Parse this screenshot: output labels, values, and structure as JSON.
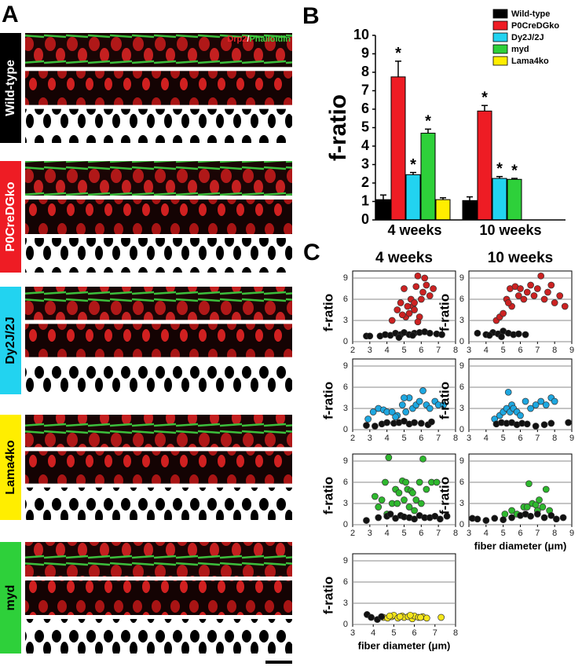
{
  "panel_a": {
    "label": "A",
    "stain": [
      "Drp2",
      "/",
      "Phalloidin"
    ],
    "stain_colors": [
      "#e8262a",
      "#ffffff",
      "#3dd13d"
    ],
    "rows": [
      {
        "label": "Wild-type",
        "color": "#000000"
      },
      {
        "label": "P0CreDGko",
        "color": "#ee1c24"
      },
      {
        "label": "Dy2J/2J",
        "color": "#22d3f0"
      },
      {
        "label": "Lama4ko",
        "color": "#ffee00"
      },
      {
        "label": "myd",
        "color": "#2ed03a"
      }
    ]
  },
  "chart_data": [
    {
      "type": "bar",
      "panel_label": "B",
      "ylabel": "f-ratio",
      "categories": [
        "4 weeks",
        "10 weeks"
      ],
      "ylim": [
        0,
        10
      ],
      "yticks": [
        0,
        1,
        2,
        3,
        4,
        5,
        6,
        7,
        8,
        9,
        10
      ],
      "legend": "top-right",
      "series": [
        {
          "name": "Wild-type",
          "color": "#000000",
          "values": [
            1.1,
            1.05
          ],
          "errors": [
            0.25,
            0.2
          ],
          "significance": [
            null,
            null
          ]
        },
        {
          "name": "P0CreDGko",
          "color": "#ee1c24",
          "values": [
            7.75,
            5.9
          ],
          "errors": [
            0.85,
            0.3
          ],
          "significance": [
            "*",
            "*"
          ]
        },
        {
          "name": "Dy2J/2J",
          "color": "#22d3f0",
          "values": [
            2.45,
            2.25
          ],
          "errors": [
            0.12,
            0.1
          ],
          "significance": [
            "*",
            "*"
          ]
        },
        {
          "name": "myd",
          "color": "#2ed03a",
          "values": [
            4.7,
            2.2
          ],
          "errors": [
            0.22,
            0.05
          ],
          "significance": [
            "*",
            "*"
          ]
        },
        {
          "name": "Lama4ko",
          "color": "#ffee00",
          "values": [
            1.1,
            null
          ],
          "errors": [
            0.1,
            null
          ],
          "significance": [
            null,
            null
          ]
        }
      ]
    },
    {
      "type": "scatter",
      "panel_label": "C",
      "title": "4 weeks",
      "ylabel": "f-ratio",
      "xlim": [
        2,
        8
      ],
      "xticks": [
        2,
        3,
        4,
        5,
        6,
        7,
        8
      ],
      "ylim": [
        0,
        10
      ],
      "yticks": [
        0,
        3,
        6,
        9
      ],
      "series": [
        {
          "color": "#cc2222",
          "x": [
            4.3,
            4.6,
            4.8,
            5.0,
            5.1,
            5.3,
            5.4,
            5.5,
            5.6,
            5.7,
            5.8,
            5.9,
            6.0,
            6.1,
            6.3,
            6.5,
            6.7,
            5.2,
            4.9,
            5.6,
            6.2,
            5.8
          ],
          "y": [
            3,
            4.5,
            5.5,
            7.5,
            3.5,
            4,
            6,
            5,
            5.5,
            7.8,
            9.3,
            3.5,
            6,
            7,
            8,
            6.5,
            7.5,
            5,
            3.8,
            4.5,
            9,
            2.8
          ]
        },
        {
          "color": "#111111",
          "x": [
            2.8,
            3.0,
            3.6,
            3.9,
            4.2,
            4.5,
            4.8,
            5.0,
            5.3,
            5.6,
            5.9,
            6.2,
            6.5,
            6.9,
            7.2,
            4.7,
            5.5
          ],
          "y": [
            0.8,
            0.8,
            0.8,
            1,
            0.9,
            1.2,
            1,
            1.3,
            1,
            1.2,
            1.3,
            1.4,
            1.2,
            1.1,
            1.0,
            0.6,
            0.9
          ]
        }
      ]
    },
    {
      "type": "scatter",
      "title": "10 weeks",
      "ylabel": "f-ratio",
      "xlim": [
        3,
        9
      ],
      "xticks": [
        3,
        4,
        5,
        6,
        7,
        8,
        9
      ],
      "ylim": [
        0,
        10
      ],
      "yticks": [
        0,
        3,
        6,
        9
      ],
      "series": [
        {
          "color": "#cc2222",
          "x": [
            4.6,
            4.8,
            5.0,
            5.2,
            5.4,
            5.5,
            5.7,
            5.9,
            6.0,
            6.2,
            6.4,
            6.6,
            6.8,
            7.0,
            7.2,
            7.4,
            7.6,
            7.8,
            8.0,
            8.3,
            8.6,
            5.3
          ],
          "y": [
            3,
            3.5,
            4,
            6,
            7.5,
            5,
            7.8,
            6.5,
            7.5,
            6,
            7,
            8,
            6.5,
            7.5,
            9.3,
            6,
            7,
            8,
            5.5,
            6.5,
            5,
            5.5
          ]
        },
        {
          "color": "#111111",
          "x": [
            3.5,
            4.0,
            4.4,
            4.7,
            5.0,
            5.3,
            5.6,
            5.9,
            6.3,
            4.2,
            4.9
          ],
          "y": [
            1.2,
            1,
            1.3,
            1.1,
            1.5,
            1.2,
            1.0,
            1.1,
            1.0,
            0.9,
            0.7
          ]
        }
      ]
    },
    {
      "type": "scatter",
      "ylabel": "f-ratio",
      "xlim": [
        2,
        8
      ],
      "xticks": [
        2,
        3,
        4,
        5,
        6,
        7,
        8
      ],
      "ylim": [
        0,
        10
      ],
      "yticks": [
        0,
        3,
        6,
        9
      ],
      "series": [
        {
          "color": "#1ea7e0",
          "x": [
            2.9,
            3.2,
            3.5,
            3.8,
            4.0,
            4.3,
            4.6,
            4.9,
            5.1,
            5.3,
            5.5,
            5.7,
            5.9,
            6.1,
            6.3,
            6.5,
            6.8,
            7.0,
            7.3,
            5.0,
            4.5
          ],
          "y": [
            1.5,
            2.5,
            3,
            2.8,
            2.5,
            2.5,
            2,
            3.5,
            2.5,
            4.5,
            3,
            3.5,
            4,
            5.5,
            3.5,
            3,
            4,
            3.5,
            3.5,
            4.5,
            1.8
          ]
        },
        {
          "color": "#111111",
          "x": [
            2.8,
            3.3,
            3.7,
            4.0,
            4.4,
            4.7,
            5.0,
            5.3,
            5.6,
            6.0,
            6.4,
            6.6
          ],
          "y": [
            0.6,
            0.5,
            0.8,
            1,
            0.9,
            1,
            1.2,
            0.8,
            1.0,
            0.9,
            0.7,
            1.1
          ]
        }
      ]
    },
    {
      "type": "scatter",
      "ylabel": "f-ratio",
      "xlim": [
        3,
        9
      ],
      "xticks": [
        3,
        4,
        5,
        6,
        7,
        8,
        9
      ],
      "ylim": [
        0,
        10
      ],
      "yticks": [
        0,
        3,
        6,
        9
      ],
      "series": [
        {
          "color": "#1ea7e0",
          "x": [
            4.5,
            4.8,
            5.0,
            5.2,
            5.3,
            5.4,
            5.5,
            5.6,
            5.8,
            6.0,
            6.3,
            6.6,
            6.9,
            7.2,
            7.5,
            7.8,
            8.0
          ],
          "y": [
            1.5,
            2,
            2.5,
            3,
            5.3,
            2.5,
            3.5,
            3,
            2.5,
            2,
            4,
            3,
            3.5,
            4,
            3.5,
            4.5,
            4
          ]
        },
        {
          "color": "#111111",
          "x": [
            4.6,
            4.9,
            5.2,
            5.5,
            5.8,
            6.1,
            6.4,
            6.9,
            7.4,
            7.8,
            8.8
          ],
          "y": [
            0.8,
            1,
            0.9,
            1,
            0.7,
            0.9,
            0.8,
            0.5,
            0.7,
            0.9,
            1
          ]
        }
      ]
    },
    {
      "type": "scatter",
      "ylabel": "f-ratio",
      "xlim": [
        2,
        8
      ],
      "xticks": [
        2,
        3,
        4,
        5,
        6,
        7,
        8
      ],
      "ylim": [
        0,
        10
      ],
      "yticks": [
        0,
        3,
        6,
        9
      ],
      "series": [
        {
          "color": "#2eb82e",
          "x": [
            3.3,
            3.5,
            3.7,
            3.9,
            4.1,
            4.3,
            4.5,
            4.7,
            4.9,
            5.0,
            5.1,
            5.2,
            5.3,
            5.4,
            5.5,
            5.7,
            5.9,
            6.1,
            6.3,
            6.6,
            6.9,
            4.0,
            4.6,
            5.6,
            6.0
          ],
          "y": [
            4,
            2.5,
            3.5,
            6,
            9.5,
            3,
            5,
            4.5,
            6.2,
            3.5,
            6,
            5,
            2.5,
            4.8,
            4.5,
            3.5,
            6,
            9.3,
            5,
            6,
            6,
            1.5,
            3,
            2,
            3
          ]
        },
        {
          "color": "#111111",
          "x": [
            2.8,
            3.5,
            4.0,
            4.5,
            4.8,
            5.0,
            5.3,
            5.6,
            5.9,
            6.2,
            6.5,
            6.8,
            7.1,
            7.5,
            4.2
          ],
          "y": [
            0.6,
            1,
            1.2,
            0.9,
            1.3,
            1.1,
            1.0,
            0.8,
            1.3,
            1,
            1.0,
            1.2,
            0.8,
            1.2,
            1.5
          ]
        }
      ]
    },
    {
      "type": "scatter",
      "ylabel": "f-ratio",
      "xlabel": "fiber diameter (μm)",
      "xlim": [
        3,
        9
      ],
      "xticks": [
        3,
        4,
        5,
        6,
        7,
        8,
        9
      ],
      "ylim": [
        0,
        10
      ],
      "yticks": [
        0,
        3,
        6,
        9
      ],
      "series": [
        {
          "color": "#2eb82e",
          "x": [
            5.1,
            5.5,
            5.8,
            6.2,
            6.5,
            6.7,
            6.9,
            7.1,
            7.3,
            7.5,
            7.7,
            6.4,
            7.0
          ],
          "y": [
            1.5,
            2,
            1.5,
            2.5,
            5.8,
            3,
            2.8,
            3.5,
            2.5,
            5,
            2,
            2.5,
            2
          ]
        },
        {
          "color": "#111111",
          "x": [
            3.2,
            3.5,
            4.0,
            4.5,
            5.0,
            5.5,
            6.0,
            6.3,
            6.6,
            7.0,
            7.4,
            7.8,
            8.1,
            8.5
          ],
          "y": [
            0.9,
            0.8,
            0.6,
            0.9,
            0.7,
            1,
            1.3,
            1.5,
            1.2,
            1.5,
            1,
            1.3,
            0.8,
            1
          ]
        }
      ]
    },
    {
      "type": "scatter",
      "ylabel": "f-ratio",
      "xlabel": "fiber diameter (μm)",
      "xlim": [
        3,
        8
      ],
      "xticks": [
        3,
        4,
        5,
        6,
        7,
        8
      ],
      "ylim": [
        0,
        10
      ],
      "yticks": [
        0,
        3,
        6,
        9
      ],
      "series": [
        {
          "color": "#f5e61a",
          "x": [
            4.5,
            4.7,
            4.9,
            5.0,
            5.2,
            5.4,
            5.5,
            5.7,
            5.9,
            6.0,
            6.2,
            6.4,
            6.6,
            7.3,
            4.8,
            5.3,
            5.8,
            6.3
          ],
          "y": [
            1,
            0.9,
            1.1,
            1.3,
            0.9,
            1.2,
            1,
            1.1,
            0.8,
            1.2,
            1,
            1.1,
            0.9,
            1,
            1.2,
            1.1,
            1.3,
            1
          ]
        },
        {
          "color": "#111111",
          "x": [
            3.7,
            3.9,
            4.2,
            4.4
          ],
          "y": [
            1.4,
            1,
            0.7,
            1.1
          ]
        }
      ]
    }
  ]
}
